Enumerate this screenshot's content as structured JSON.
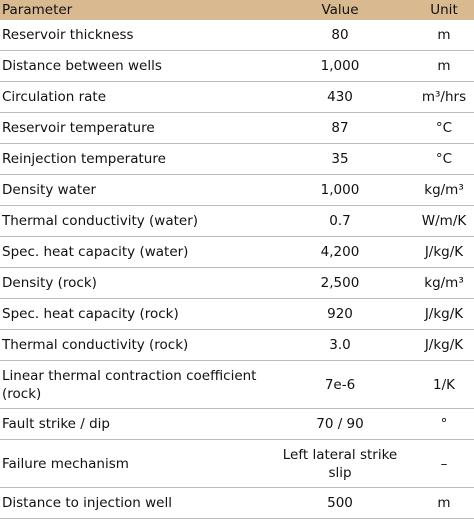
{
  "table": {
    "header": [
      "Parameter",
      "Value",
      "Unit"
    ],
    "rows": [
      [
        "Reservoir thickness",
        "80",
        "m"
      ],
      [
        "Distance between wells",
        "1,000",
        "m"
      ],
      [
        "Circulation rate",
        "430",
        "m³/hrs"
      ],
      [
        "Reservoir temperature",
        "87",
        "°C"
      ],
      [
        "Reinjection temperature",
        "35",
        "°C"
      ],
      [
        "Density water",
        "1,000",
        "kg/m³"
      ],
      [
        "Thermal conductivity (water)",
        "0.7",
        "W/m/K"
      ],
      [
        "Spec. heat capacity (water)",
        "4,200",
        "J/kg/K"
      ],
      [
        "Density (rock)",
        "2,500",
        "kg/m³"
      ],
      [
        "Spec. heat capacity (rock)",
        "920",
        "J/kg/K"
      ],
      [
        "Thermal conductivity (rock)",
        "3.0",
        "J/kg/K"
      ],
      [
        "Linear thermal contraction coefficient (rock)",
        "7e-6",
        "1/K"
      ],
      [
        "Fault strike / dip",
        "70 / 90",
        "°"
      ],
      [
        "Failure mechanism",
        "Left lateral strike slip",
        "–"
      ],
      [
        "Distance to injection well",
        "500",
        "m"
      ]
    ]
  }
}
